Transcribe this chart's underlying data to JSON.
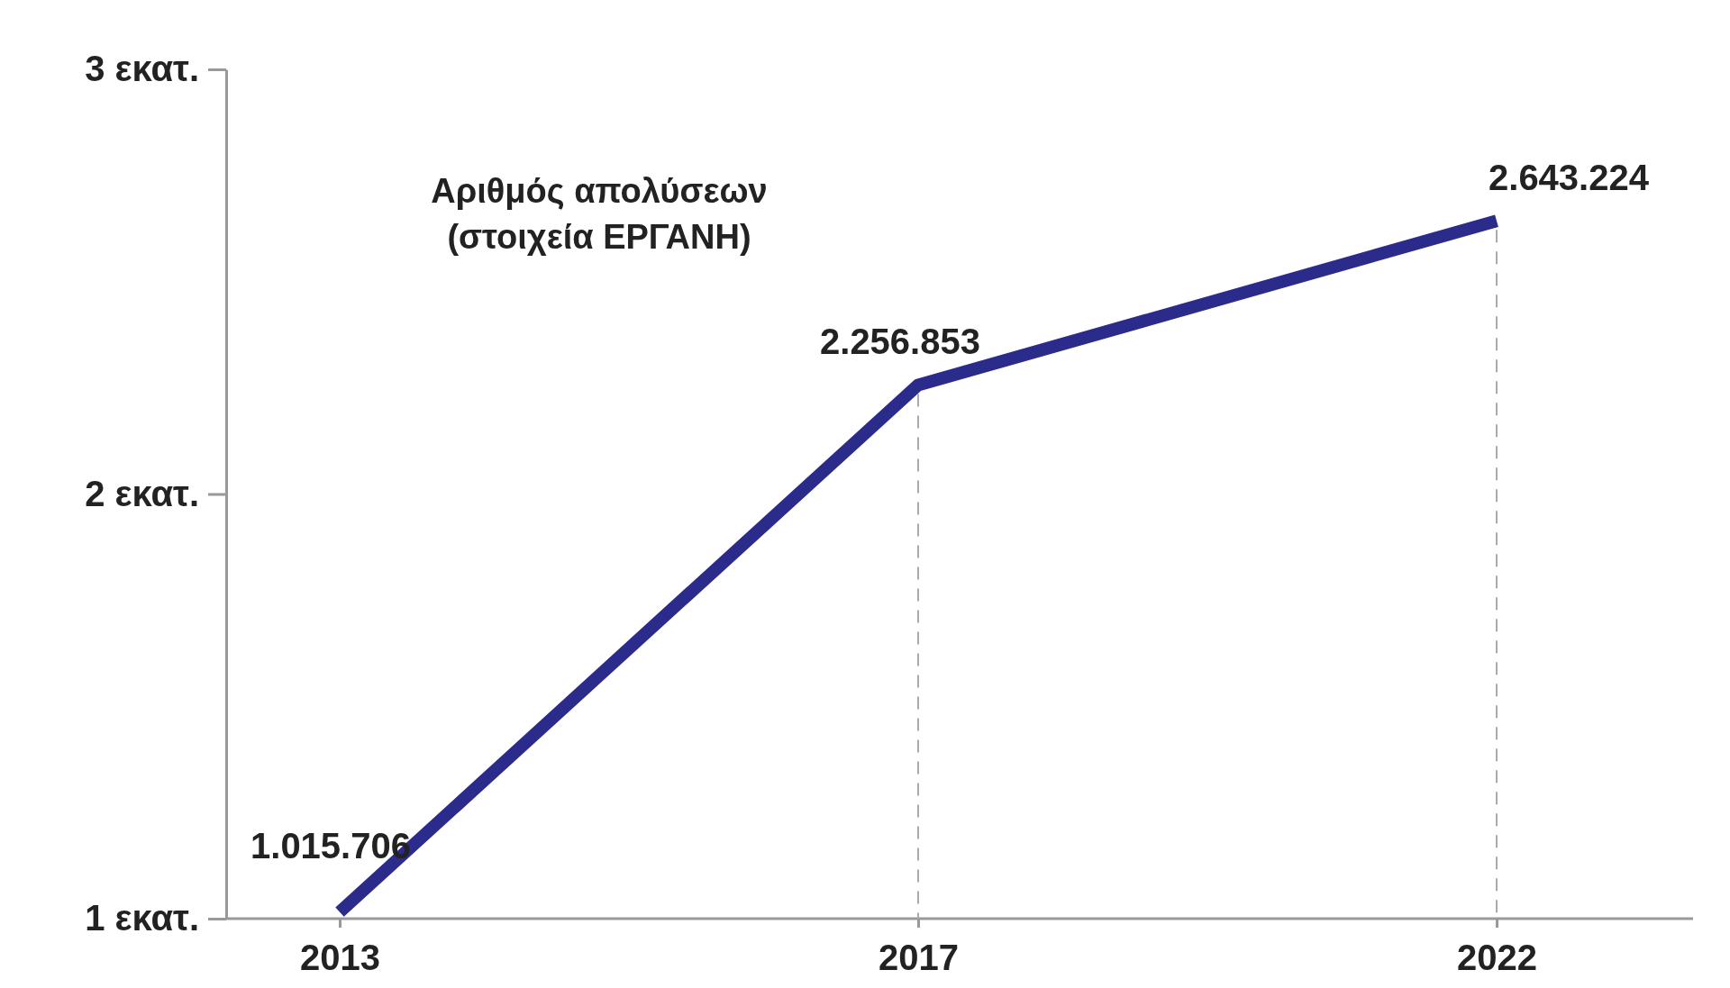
{
  "chart_data": {
    "type": "line",
    "title": "Αριθμός απολύσεων\n(στοιχεία ΕΡΓΑΝΗ)",
    "categories": [
      "2013",
      "2017",
      "2022"
    ],
    "series": [
      {
        "color": "#2b2b8c",
        "values": [
          1.015706,
          2.256853,
          2.643224
        ]
      }
    ],
    "value_labels": [
      "1.015.706",
      "2.256.853",
      "2.643.224"
    ],
    "ylim": [
      1,
      3
    ],
    "yticks": [
      {
        "value": 1,
        "label": "1 εκατ."
      },
      {
        "value": 2,
        "label": "2 εκατ."
      },
      {
        "value": 3,
        "label": "3 εκατ."
      }
    ],
    "grid": "x",
    "marker": "none",
    "line_style": "solid"
  }
}
